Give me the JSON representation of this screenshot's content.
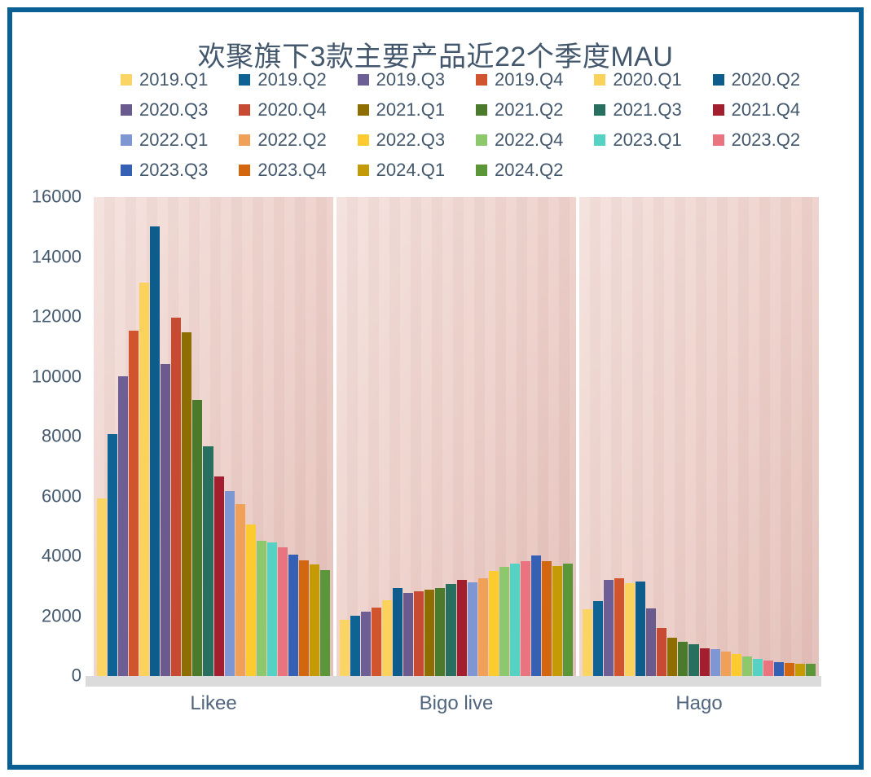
{
  "title": "欢聚旗下3款主要产品近22个季度MAU",
  "style": {
    "frame_color": "#0A5F95",
    "text_color": "#44586D",
    "category_label_color": "#51667E",
    "plot_bg_from": "#F4E1DD",
    "plot_bg_to": "#E3BEB8",
    "baseline_strip_color": "#DBDBDB",
    "panel_separator_color": "#EFEFEF"
  },
  "chart_data": {
    "type": "bar",
    "title": "欢聚旗下3款主要产品近22个季度MAU",
    "categories": [
      "Likee",
      "Bigo live",
      "Hago"
    ],
    "xlabel": "",
    "ylabel": "",
    "ylim": [
      0,
      16000
    ],
    "yticks": [
      0,
      2000,
      4000,
      6000,
      8000,
      10000,
      12000,
      14000,
      16000
    ],
    "grid": false,
    "legend_position": "top",
    "series": [
      {
        "name": "2019.Q1",
        "color": "#FAD564",
        "values": [
          5930,
          1880,
          2240
        ]
      },
      {
        "name": "2019.Q2",
        "color": "#0E6394",
        "values": [
          8070,
          2020,
          2510
        ]
      },
      {
        "name": "2019.Q3",
        "color": "#6D5F96",
        "values": [
          10020,
          2160,
          3200
        ]
      },
      {
        "name": "2019.Q4",
        "color": "#D0552E",
        "values": [
          11530,
          2290,
          3270
        ]
      },
      {
        "name": "2020.Q1",
        "color": "#FBD35C",
        "values": [
          13130,
          2530,
          3090
        ]
      },
      {
        "name": "2020.Q2",
        "color": "#0D5C8C",
        "values": [
          15030,
          2930,
          3150
        ]
      },
      {
        "name": "2020.Q3",
        "color": "#6A5A8E",
        "values": [
          10420,
          2780,
          2250
        ]
      },
      {
        "name": "2020.Q4",
        "color": "#C74A33",
        "values": [
          11980,
          2820,
          1610
        ]
      },
      {
        "name": "2021.Q1",
        "color": "#8F6E00",
        "values": [
          11480,
          2890,
          1280
        ]
      },
      {
        "name": "2021.Q2",
        "color": "#4C7A2D",
        "values": [
          9220,
          2930,
          1150
        ]
      },
      {
        "name": "2021.Q3",
        "color": "#27705F",
        "values": [
          7670,
          3070,
          1060
        ]
      },
      {
        "name": "2021.Q4",
        "color": "#A31E2E",
        "values": [
          6680,
          3200,
          930
        ]
      },
      {
        "name": "2022.Q1",
        "color": "#7E97D3",
        "values": [
          6170,
          3140,
          900
        ]
      },
      {
        "name": "2022.Q2",
        "color": "#F0A057",
        "values": [
          5730,
          3260,
          820
        ]
      },
      {
        "name": "2022.Q3",
        "color": "#FCCB2F",
        "values": [
          5070,
          3520,
          730
        ]
      },
      {
        "name": "2022.Q4",
        "color": "#8DC96C",
        "values": [
          4530,
          3660,
          640
        ]
      },
      {
        "name": "2023.Q1",
        "color": "#55D2C4",
        "values": [
          4470,
          3750,
          570
        ]
      },
      {
        "name": "2023.Q2",
        "color": "#EA7380",
        "values": [
          4310,
          3840,
          530
        ]
      },
      {
        "name": "2023.Q3",
        "color": "#3560B4",
        "values": [
          4060,
          4030,
          460
        ]
      },
      {
        "name": "2023.Q4",
        "color": "#D2670F",
        "values": [
          3870,
          3840,
          440
        ]
      },
      {
        "name": "2024.Q1",
        "color": "#C49B07",
        "values": [
          3740,
          3680,
          410
        ]
      },
      {
        "name": "2024.Q2",
        "color": "#5B9638",
        "values": [
          3550,
          3760,
          400
        ]
      }
    ]
  }
}
